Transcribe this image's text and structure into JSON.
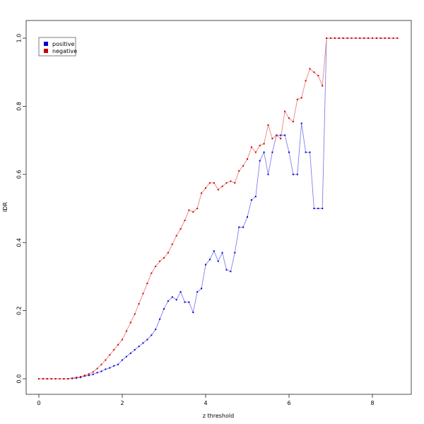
{
  "chart_data": {
    "type": "line",
    "xlabel": "z threshold",
    "ylabel": "IDR",
    "xlim": [
      0,
      8.6
    ],
    "ylim": [
      0,
      1.0
    ],
    "x_ticks": [
      0,
      2,
      4,
      6,
      8
    ],
    "y_ticks": [
      0.0,
      0.2,
      0.4,
      0.6,
      0.8,
      1.0
    ],
    "x_tick_labels": [
      "0",
      "2",
      "4",
      "6",
      "8"
    ],
    "y_tick_labels": [
      "0.0",
      "0.2",
      "0.4",
      "0.6",
      "0.8",
      "1.0"
    ],
    "grid": false,
    "legend_position": "top-left",
    "x": [
      0.0,
      0.1,
      0.2,
      0.3,
      0.4,
      0.5,
      0.6,
      0.7,
      0.8,
      0.9,
      1.0,
      1.1,
      1.2,
      1.3,
      1.4,
      1.5,
      1.6,
      1.7,
      1.8,
      1.9,
      2.0,
      2.1,
      2.2,
      2.3,
      2.4,
      2.5,
      2.6,
      2.7,
      2.8,
      2.9,
      3.0,
      3.1,
      3.2,
      3.3,
      3.4,
      3.5,
      3.6,
      3.7,
      3.8,
      3.9,
      4.0,
      4.1,
      4.2,
      4.3,
      4.4,
      4.5,
      4.6,
      4.7,
      4.8,
      4.9,
      5.0,
      5.1,
      5.2,
      5.3,
      5.4,
      5.5,
      5.6,
      5.7,
      5.8,
      5.9,
      6.0,
      6.1,
      6.2,
      6.3,
      6.4,
      6.5,
      6.6,
      6.7,
      6.8,
      6.9,
      7.0,
      7.1,
      7.2,
      7.3,
      7.4,
      7.5,
      7.6,
      7.7,
      7.8,
      7.9,
      8.0,
      8.1,
      8.2,
      8.3,
      8.4,
      8.5,
      8.6
    ],
    "series": [
      {
        "name": "positive",
        "color": "#0000cc",
        "line_color": "#8080ee",
        "values": [
          0,
          0,
          0,
          0,
          0,
          0,
          0,
          0,
          0.001,
          0.002,
          0.004,
          0.008,
          0.01,
          0.013,
          0.018,
          0.022,
          0.028,
          0.032,
          0.038,
          0.042,
          0.055,
          0.065,
          0.075,
          0.085,
          0.095,
          0.105,
          0.115,
          0.128,
          0.145,
          0.175,
          0.205,
          0.228,
          0.24,
          0.232,
          0.255,
          0.225,
          0.225,
          0.195,
          0.255,
          0.265,
          0.335,
          0.35,
          0.375,
          0.345,
          0.37,
          0.32,
          0.315,
          0.37,
          0.445,
          0.445,
          0.475,
          0.525,
          0.535,
          0.64,
          0.665,
          0.6,
          0.665,
          0.715,
          0.715,
          0.715,
          0.665,
          0.6,
          0.6,
          0.75,
          0.665,
          0.665,
          0.5,
          0.5,
          0.5,
          1.0,
          1.0,
          1.0,
          1.0,
          1.0,
          1.0,
          1.0,
          1.0,
          1.0,
          1.0,
          1.0,
          1.0,
          1.0,
          1.0,
          1.0,
          1.0,
          1.0,
          1.0
        ]
      },
      {
        "name": "negative",
        "color": "#cc0000",
        "line_color": "#ee8080",
        "values": [
          0,
          0,
          0,
          0,
          0,
          0,
          0,
          0,
          0.002,
          0.004,
          0.006,
          0.01,
          0.014,
          0.02,
          0.03,
          0.042,
          0.055,
          0.07,
          0.085,
          0.1,
          0.115,
          0.14,
          0.165,
          0.19,
          0.22,
          0.25,
          0.28,
          0.31,
          0.33,
          0.345,
          0.355,
          0.37,
          0.395,
          0.42,
          0.44,
          0.465,
          0.495,
          0.49,
          0.5,
          0.545,
          0.56,
          0.575,
          0.575,
          0.555,
          0.565,
          0.575,
          0.58,
          0.575,
          0.61,
          0.625,
          0.645,
          0.68,
          0.665,
          0.685,
          0.69,
          0.745,
          0.705,
          0.715,
          0.705,
          0.785,
          0.765,
          0.755,
          0.82,
          0.825,
          0.875,
          0.91,
          0.9,
          0.89,
          0.86,
          1.0,
          1.0,
          1.0,
          1.0,
          1.0,
          1.0,
          1.0,
          1.0,
          1.0,
          1.0,
          1.0,
          1.0,
          1.0,
          1.0,
          1.0,
          1.0,
          1.0,
          1.0
        ]
      }
    ]
  }
}
